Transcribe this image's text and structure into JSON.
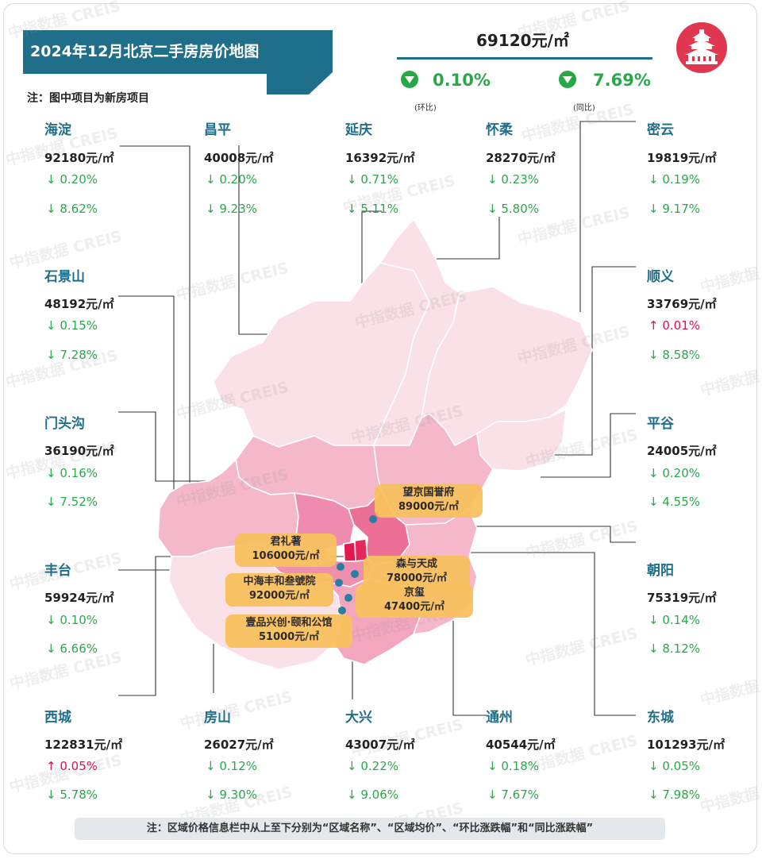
{
  "title": "2024年12月北京二手房房价地图",
  "note_top": "注：图中项目为新房项目",
  "summary": {
    "price": "69120元/㎡",
    "mom": "0.10%",
    "mom_label": "(环比)",
    "yoy": "7.69%",
    "yoy_label": "(同比)"
  },
  "watermark": "中指数据 CREIS",
  "districts": [
    {
      "name": "海淀",
      "price": "92180元/㎡",
      "mom": "↓ 0.20%",
      "yoy": "↓ 8.62%",
      "mom_dir": "down",
      "color": "#f08bb0"
    },
    {
      "name": "昌平",
      "price": "40008元/㎡",
      "mom": "↓ 0.20%",
      "yoy": "↓ 9.23%",
      "mom_dir": "down",
      "color": "#f5b8cb"
    },
    {
      "name": "延庆",
      "price": "16392元/㎡",
      "mom": "↓ 0.71%",
      "yoy": "↓ 5.11%",
      "mom_dir": "down",
      "color": "#fae0e7"
    },
    {
      "name": "怀柔",
      "price": "28270元/㎡",
      "mom": "↓ 0.23%",
      "yoy": "↓ 5.80%",
      "mom_dir": "down",
      "color": "#fae0e7"
    },
    {
      "name": "密云",
      "price": "19819元/㎡",
      "mom": "↓ 0.19%",
      "yoy": "↓ 9.17%",
      "mom_dir": "down",
      "color": "#fae0e7"
    },
    {
      "name": "石景山",
      "price": "48192元/㎡",
      "mom": "↓ 0.15%",
      "yoy": "↓ 7.28%",
      "mom_dir": "down",
      "color": "#f4a6bf"
    },
    {
      "name": "顺义",
      "price": "33769元/㎡",
      "mom": "↑ 0.01%",
      "yoy": "↓ 8.58%",
      "mom_dir": "up",
      "color": "#f5b8cb"
    },
    {
      "name": "门头沟",
      "price": "36190元/㎡",
      "mom": "↓ 0.16%",
      "yoy": "↓ 7.52%",
      "mom_dir": "down",
      "color": "#f5b8cb"
    },
    {
      "name": "平谷",
      "price": "24005元/㎡",
      "mom": "↓ 0.20%",
      "yoy": "↓ 4.55%",
      "mom_dir": "down",
      "color": "#fae0e7"
    },
    {
      "name": "丰台",
      "price": "59924元/㎡",
      "mom": "↓ 0.10%",
      "yoy": "↓ 6.66%",
      "mom_dir": "down",
      "color": "#ef8fae"
    },
    {
      "name": "朝阳",
      "price": "75319元/㎡",
      "mom": "↓ 0.14%",
      "yoy": "↓ 8.12%",
      "mom_dir": "down",
      "color": "#ec6f97"
    },
    {
      "name": "西城",
      "price": "122831元/㎡",
      "mom": "↑ 0.05%",
      "yoy": "↓ 5.78%",
      "mom_dir": "up",
      "color": "#e2184f"
    },
    {
      "name": "房山",
      "price": "26027元/㎡",
      "mom": "↓ 0.12%",
      "yoy": "↓ 9.30%",
      "mom_dir": "down",
      "color": "#fae0e7"
    },
    {
      "name": "大兴",
      "price": "43007元/㎡",
      "mom": "↓ 0.22%",
      "yoy": "↓ 9.06%",
      "mom_dir": "down",
      "color": "#f4a6bf"
    },
    {
      "name": "通州",
      "price": "40544元/㎡",
      "mom": "↓ 0.18%",
      "yoy": "↓ 7.67%",
      "mom_dir": "down",
      "color": "#f5b8cb"
    },
    {
      "name": "东城",
      "price": "101293元/㎡",
      "mom": "↓ 0.05%",
      "yoy": "↓ 7.98%",
      "mom_dir": "down",
      "color": "#e5285c"
    }
  ],
  "projects": [
    {
      "name": "望京国誉府",
      "price": "89000元/㎡"
    },
    {
      "name": "君礼著",
      "price": "106000元/㎡"
    },
    {
      "name": "森与天成",
      "price": "78000元/㎡"
    },
    {
      "name": "中海丰和叁號院",
      "price": "92000元/㎡"
    },
    {
      "name": "京玺",
      "price": "47400元/㎡"
    },
    {
      "name": "壹品兴创·颐和公馆",
      "price": "51000元/㎡"
    }
  ],
  "note_bottom": "注：区域价格信息栏中从上至下分别为“区域名称”、“区域均价”、“环比涨跌幅”和“同比涨跌幅”",
  "colors": {
    "title_bg": "#1f6f8b",
    "down": "#2aa84a",
    "up": "#e0104f",
    "project": "#f9c15f",
    "dot": "#2a7fa0"
  }
}
